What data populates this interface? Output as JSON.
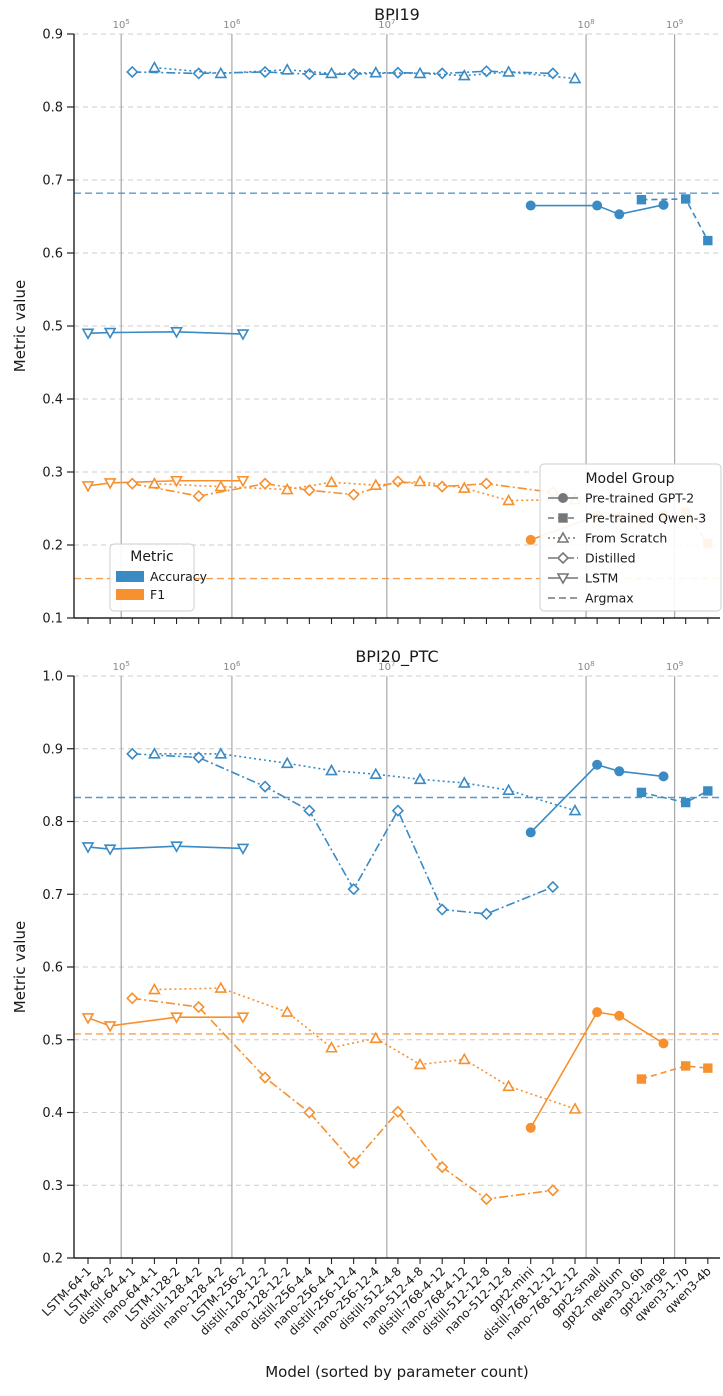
{
  "figure": {
    "xlabel": "Model (sorted by parameter count)",
    "models": [
      "LSTM-64-1",
      "LSTM-64-2",
      "distill-64-4-1",
      "nano-64-4-1",
      "LSTM-128-2",
      "distill-128-4-2",
      "nano-128-4-2",
      "LSTM-256-2",
      "distill-128-12-2",
      "nano-128-12-2",
      "distill-256-4-4",
      "nano-256-4-4",
      "distill-256-12-4",
      "nano-256-12-4",
      "distill-512-4-8",
      "nano-512-4-8",
      "distill-768-4-12",
      "nano-768-4-12",
      "distill-512-12-8",
      "nano-512-12-8",
      "gpt2-mini",
      "distill-768-12-12",
      "nano-768-12-12",
      "gpt2-small",
      "gpt2-medium",
      "qwen3-0.6b",
      "gpt2-large",
      "qwen3-1.7b",
      "qwen3-4b"
    ],
    "param_markers": [
      {
        "label": "10",
        "exp": "5",
        "position": 1.5
      },
      {
        "label": "10",
        "exp": "6",
        "position": 6.5
      },
      {
        "label": "10",
        "exp": "7",
        "position": 13.5
      },
      {
        "label": "10",
        "exp": "8",
        "position": 22.5
      },
      {
        "label": "10",
        "exp": "9",
        "position": 26.5
      }
    ],
    "colors": {
      "Accuracy": "#3a8ac4",
      "F1": "#f7902e"
    },
    "metric_legend": {
      "title": "Metric",
      "items": [
        "Accuracy",
        "F1"
      ]
    },
    "group_legend": {
      "title": "Model Group",
      "items": [
        "Pre-trained GPT-2",
        "Pre-trained Qwen-3",
        "From Scratch",
        "Distilled",
        "LSTM",
        "Argmax"
      ]
    }
  },
  "chart_data": [
    {
      "type": "line",
      "title": "BPI19",
      "ylabel": "Metric value",
      "ylim": [
        0.1,
        0.9
      ],
      "yticks": [
        "0.1",
        "0.2",
        "0.3",
        "0.4",
        "0.5",
        "0.6",
        "0.7",
        "0.8",
        "0.9"
      ],
      "grid": true,
      "legend": [
        "lower left",
        "lower right"
      ],
      "argmax": {
        "Accuracy": 0.682,
        "F1": 0.154
      },
      "series": [
        {
          "group": "LSTM",
          "metric": "Accuracy",
          "x": [
            0,
            1,
            4,
            7
          ],
          "values": [
            0.49,
            0.491,
            0.492,
            0.489
          ]
        },
        {
          "group": "LSTM",
          "metric": "F1",
          "x": [
            0,
            1,
            4,
            7
          ],
          "values": [
            0.281,
            0.285,
            0.288,
            0.288
          ]
        },
        {
          "group": "Distilled",
          "metric": "Accuracy",
          "x": [
            2,
            5,
            8,
            10,
            12,
            14,
            16,
            18,
            21
          ],
          "values": [
            0.848,
            0.846,
            0.848,
            0.845,
            0.845,
            0.847,
            0.846,
            0.849,
            0.846
          ]
        },
        {
          "group": "Distilled",
          "metric": "F1",
          "x": [
            2,
            5,
            8,
            10,
            12,
            14,
            16,
            18,
            21
          ],
          "values": [
            0.284,
            0.267,
            0.284,
            0.275,
            0.269,
            0.287,
            0.28,
            0.284,
            0.272
          ]
        },
        {
          "group": "From Scratch",
          "metric": "Accuracy",
          "x": [
            3,
            6,
            9,
            11,
            13,
            15,
            17,
            19,
            22
          ],
          "values": [
            0.854,
            0.846,
            0.851,
            0.846,
            0.847,
            0.846,
            0.843,
            0.848,
            0.839
          ]
        },
        {
          "group": "From Scratch",
          "metric": "F1",
          "x": [
            3,
            6,
            9,
            11,
            13,
            15,
            17,
            19,
            22
          ],
          "values": [
            0.284,
            0.28,
            0.276,
            0.286,
            0.282,
            0.287,
            0.278,
            0.261,
            0.262
          ]
        },
        {
          "group": "Pre-trained GPT-2",
          "metric": "Accuracy",
          "x": [
            20,
            23,
            24,
            26
          ],
          "values": [
            0.665,
            0.665,
            0.653,
            0.666
          ]
        },
        {
          "group": "Pre-trained GPT-2",
          "metric": "F1",
          "x": [
            20,
            23,
            24,
            26
          ],
          "values": [
            0.207,
            0.24,
            0.238,
            0.241
          ]
        },
        {
          "group": "Pre-trained Qwen-3",
          "metric": "Accuracy",
          "x": [
            25,
            27,
            28
          ],
          "values": [
            0.673,
            0.674,
            0.617
          ]
        },
        {
          "group": "Pre-trained Qwen-3",
          "metric": "F1",
          "x": [
            25,
            27,
            28
          ],
          "values": [
            0.235,
            0.245,
            0.202
          ]
        }
      ]
    },
    {
      "type": "line",
      "title": "BPI20_PTC",
      "ylabel": "Metric value",
      "ylim": [
        0.2,
        1.0
      ],
      "yticks": [
        "0.2",
        "0.3",
        "0.4",
        "0.5",
        "0.6",
        "0.7",
        "0.8",
        "0.9",
        "1.0"
      ],
      "grid": true,
      "legend": [],
      "argmax": {
        "Accuracy": 0.833,
        "F1": 0.508
      },
      "series": [
        {
          "group": "LSTM",
          "metric": "Accuracy",
          "x": [
            0,
            1,
            4,
            7
          ],
          "values": [
            0.765,
            0.762,
            0.766,
            0.763
          ]
        },
        {
          "group": "LSTM",
          "metric": "F1",
          "x": [
            0,
            1,
            4,
            7
          ],
          "values": [
            0.53,
            0.519,
            0.531,
            0.531
          ]
        },
        {
          "group": "Distilled",
          "metric": "Accuracy",
          "x": [
            2,
            5,
            8,
            10,
            12,
            14,
            16,
            18,
            21
          ],
          "values": [
            0.893,
            0.888,
            0.848,
            0.815,
            0.707,
            0.815,
            0.679,
            0.673,
            0.71
          ]
        },
        {
          "group": "Distilled",
          "metric": "F1",
          "x": [
            2,
            5,
            8,
            10,
            12,
            14,
            16,
            18,
            21
          ],
          "values": [
            0.557,
            0.545,
            0.448,
            0.4,
            0.331,
            0.401,
            0.325,
            0.281,
            0.293
          ]
        },
        {
          "group": "From Scratch",
          "metric": "Accuracy",
          "x": [
            3,
            6,
            9,
            11,
            13,
            15,
            17,
            19,
            22
          ],
          "values": [
            0.893,
            0.893,
            0.88,
            0.87,
            0.865,
            0.858,
            0.853,
            0.843,
            0.815
          ]
        },
        {
          "group": "From Scratch",
          "metric": "F1",
          "x": [
            3,
            6,
            9,
            11,
            13,
            15,
            17,
            19,
            22
          ],
          "values": [
            0.569,
            0.571,
            0.538,
            0.489,
            0.502,
            0.466,
            0.473,
            0.436,
            0.405
          ]
        },
        {
          "group": "Pre-trained GPT-2",
          "metric": "Accuracy",
          "x": [
            20,
            23,
            24,
            26
          ],
          "values": [
            0.785,
            0.878,
            0.869,
            0.862
          ]
        },
        {
          "group": "Pre-trained GPT-2",
          "metric": "F1",
          "x": [
            20,
            23,
            24,
            26
          ],
          "values": [
            0.379,
            0.538,
            0.533,
            0.495
          ]
        },
        {
          "group": "Pre-trained Qwen-3",
          "metric": "Accuracy",
          "x": [
            25,
            27,
            28
          ],
          "values": [
            0.84,
            0.826,
            0.842
          ]
        },
        {
          "group": "Pre-trained Qwen-3",
          "metric": "F1",
          "x": [
            25,
            27,
            28
          ],
          "values": [
            0.446,
            0.464,
            0.461
          ]
        }
      ]
    }
  ]
}
